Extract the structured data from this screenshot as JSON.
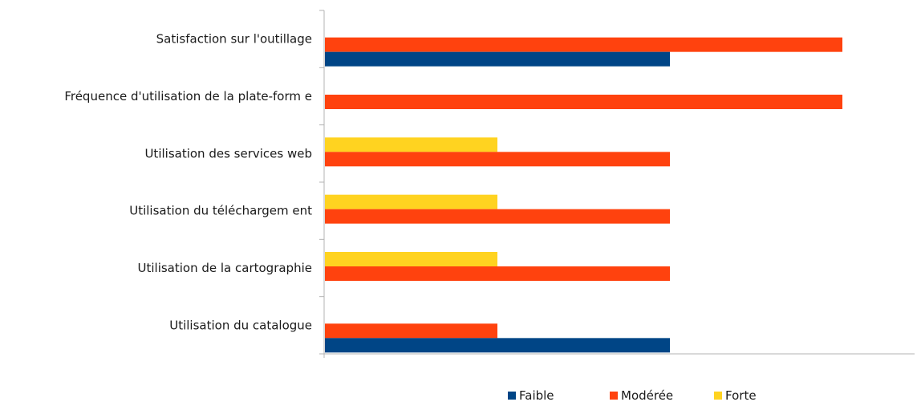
{
  "chart_data": {
    "type": "bar",
    "orientation": "horizontal",
    "categories": [
      "Satisfaction sur l'outillage",
      "Fréquence d'utilisation de la plate-form e",
      "Utilisation des services web",
      "Utilisation du téléchargem ent",
      "Utilisation de la cartographie",
      "Utilisation du catalogue"
    ],
    "series": [
      {
        "name": "Faible",
        "color": "#004586",
        "values": [
          2,
          0,
          0,
          0,
          0,
          2
        ]
      },
      {
        "name": "Modérée",
        "color": "#ff420e",
        "values": [
          3,
          3,
          2,
          2,
          2,
          1
        ]
      },
      {
        "name": "Forte",
        "color": "#ffd320",
        "values": [
          0,
          0,
          1,
          1,
          1,
          0
        ]
      }
    ],
    "xlim": [
      0,
      3.45
    ],
    "grid": false,
    "legend": "bottom"
  }
}
